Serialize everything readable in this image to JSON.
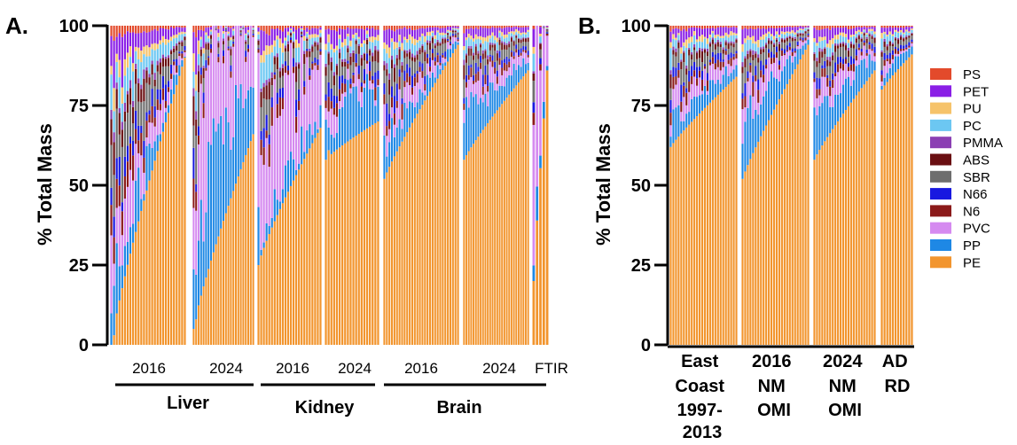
{
  "panel_labels": [
    "A.",
    "B."
  ],
  "legend": [
    {
      "name": "PS",
      "color": "#e34a2b"
    },
    {
      "name": "PET",
      "color": "#8a1fe6"
    },
    {
      "name": "PU",
      "color": "#f6c36a"
    },
    {
      "name": "PC",
      "color": "#6cc7f2"
    },
    {
      "name": "PMMA",
      "color": "#8b3fb3"
    },
    {
      "name": "ABS",
      "color": "#6a0f12"
    },
    {
      "name": "SBR",
      "color": "#6e6e6e"
    },
    {
      "name": "N66",
      "color": "#1818e0"
    },
    {
      "name": "N6",
      "color": "#8b1a1a"
    },
    {
      "name": "PVC",
      "color": "#d58af0"
    },
    {
      "name": "PP",
      "color": "#1e88e5"
    },
    {
      "name": "PE",
      "color": "#f2952e"
    }
  ],
  "chart_data": [
    {
      "type": "bar",
      "stacked": true,
      "panel": "A.",
      "ylabel": "% Total Mass",
      "ylim": [
        0,
        100
      ],
      "yticks": [
        0,
        25,
        50,
        75,
        100
      ],
      "sub_tick_labels": [
        "2016",
        "2024",
        "2016",
        "2024",
        "2016",
        "2024",
        "FTIR"
      ],
      "group_labels": [
        "Liver",
        "Kidney",
        "Brain"
      ],
      "segments": [
        {
          "label": "2016",
          "group": "Liver",
          "n": 28,
          "pe_start": 0,
          "pe_end": 90,
          "pp_hi": 0.04,
          "pvc_hi": 0.04,
          "noise": 0.02,
          "lowfirst": true
        },
        {
          "label": "2024",
          "group": "Liver",
          "n": 25,
          "pe_start": 5,
          "pe_end": 66,
          "pp_hi": 0.32,
          "pvc_hi": 0.28,
          "noise": 0.03,
          "lowfirst": true
        },
        {
          "label": "2016",
          "group": "Kidney",
          "n": 24,
          "pe_start": 25,
          "pe_end": 68,
          "pp_hi": 0.03,
          "pvc_hi": 0.35,
          "noise": 0.02,
          "lowfirst": true
        },
        {
          "label": "2024",
          "group": "Kidney",
          "n": 20,
          "pe_start": 58,
          "pe_end": 70,
          "pp_hi": 0.26,
          "pvc_hi": 0.02,
          "noise": 0.02,
          "lowfirst": true
        },
        {
          "label": "2016",
          "group": "Brain",
          "n": 30,
          "pe_start": 52,
          "pe_end": 94,
          "pp_hi": 0.08,
          "pvc_hi": 0.05,
          "noise": 0.01,
          "lowfirst": false
        },
        {
          "label": "2024",
          "group": "Brain",
          "n": 28,
          "pe_start": 58,
          "pe_end": 86,
          "pp_hi": 0.18,
          "pvc_hi": 0.07,
          "noise": 0.01,
          "lowfirst": false
        },
        {
          "label": "FTIR",
          "group": "Brain",
          "n": 5,
          "pe_start": 20,
          "pe_end": 86,
          "pp_hi": 0.0,
          "pvc_hi": 0.5,
          "noise": 0.0,
          "lowfirst": false
        }
      ]
    },
    {
      "type": "bar",
      "stacked": true,
      "panel": "B.",
      "ylabel": "% Total Mass",
      "ylim": [
        0,
        100
      ],
      "yticks": [
        0,
        25,
        50,
        75,
        100
      ],
      "categories": [
        "East Coast 1997-2013",
        "2016 NM OMI",
        "2024 NM OMI",
        "AD RD"
      ],
      "category_lines": [
        [
          "East",
          "Coast",
          "1997-",
          "2013"
        ],
        [
          "2016",
          "NM",
          "OMI"
        ],
        [
          "2024",
          "NM",
          "OMI"
        ],
        [
          "AD",
          "RD"
        ]
      ],
      "segments": [
        {
          "label": "East Coast 1997-2013",
          "n": 26,
          "pe_start": 62,
          "pe_end": 84,
          "pp_hi": 0.08,
          "pvc_hi": 0.04,
          "noise": 0.01,
          "lowfirst": false
        },
        {
          "label": "2016 NM OMI",
          "n": 26,
          "pe_start": 52,
          "pe_end": 94,
          "pp_hi": 0.2,
          "pvc_hi": 0.06,
          "noise": 0.01,
          "lowfirst": false
        },
        {
          "label": "2024 NM OMI",
          "n": 24,
          "pe_start": 58,
          "pe_end": 86,
          "pp_hi": 0.18,
          "pvc_hi": 0.07,
          "noise": 0.01,
          "lowfirst": false
        },
        {
          "label": "AD RD",
          "n": 12,
          "pe_start": 80,
          "pe_end": 91,
          "pp_hi": 0.08,
          "pvc_hi": 0.03,
          "noise": 0.01,
          "lowfirst": false
        }
      ]
    }
  ]
}
